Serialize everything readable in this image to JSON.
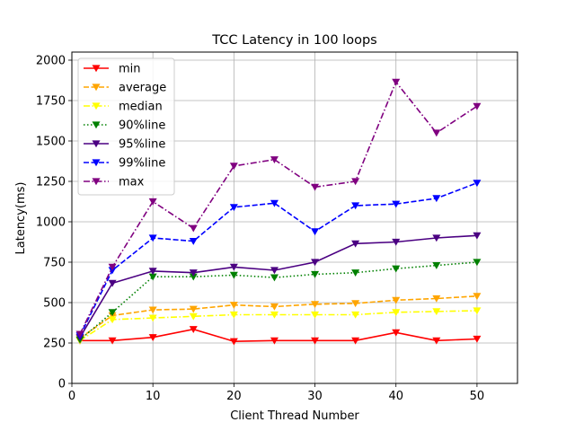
{
  "chart_data": {
    "type": "line",
    "title": "TCC Latency in 100 loops",
    "xlabel": "Client Thread Number",
    "ylabel": "Latency(ms)",
    "xlim": [
      0,
      55
    ],
    "ylim": [
      0,
      2050
    ],
    "xticks": [
      0,
      10,
      20,
      30,
      40,
      50
    ],
    "yticks": [
      0,
      250,
      500,
      750,
      1000,
      1250,
      1500,
      1750,
      2000
    ],
    "grid": true,
    "legend_position": "top-left",
    "x": [
      1,
      5,
      10,
      15,
      20,
      25,
      30,
      35,
      40,
      45,
      50
    ],
    "series": [
      {
        "name": "min",
        "color": "#ff0000",
        "dash": "solid",
        "values": [
          265,
          265,
          285,
          335,
          260,
          265,
          265,
          265,
          315,
          265,
          275
        ]
      },
      {
        "name": "average",
        "color": "#ffa500",
        "dash": "dashed",
        "values": [
          280,
          420,
          455,
          460,
          485,
          475,
          490,
          495,
          515,
          525,
          540
        ]
      },
      {
        "name": "median",
        "color": "#ffff00",
        "dash": "dashdot",
        "values": [
          265,
          395,
          405,
          415,
          425,
          425,
          425,
          425,
          440,
          445,
          450
        ]
      },
      {
        "name": "90%line",
        "color": "#008000",
        "dash": "dotted",
        "values": [
          270,
          440,
          660,
          660,
          670,
          655,
          675,
          685,
          710,
          730,
          750
        ]
      },
      {
        "name": "95%line",
        "color": "#4b0082",
        "dash": "solid",
        "values": [
          285,
          620,
          695,
          685,
          720,
          700,
          750,
          865,
          875,
          900,
          915
        ]
      },
      {
        "name": "99%line",
        "color": "#0000ff",
        "dash": "dashed",
        "values": [
          295,
          700,
          900,
          880,
          1090,
          1115,
          940,
          1100,
          1110,
          1145,
          1240
        ]
      },
      {
        "name": "max",
        "color": "#800080",
        "dash": "dashdot",
        "values": [
          305,
          720,
          1125,
          960,
          1345,
          1385,
          1215,
          1250,
          1865,
          1550,
          1715
        ]
      }
    ]
  }
}
